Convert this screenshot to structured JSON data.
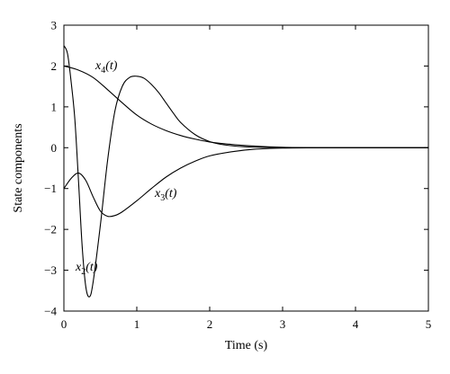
{
  "chart_data": {
    "type": "line",
    "xlabel": "Time (s)",
    "ylabel": "State components",
    "xlim": [
      0,
      5
    ],
    "ylim": [
      -4,
      3
    ],
    "xticks": [
      "0",
      "1",
      "2",
      "3",
      "4",
      "5"
    ],
    "yticks": [
      "3",
      "2",
      "1",
      "0",
      "−1",
      "−2",
      "−3",
      "−4"
    ],
    "grid": false,
    "series": [
      {
        "name": "x2(t)",
        "label_main": "x",
        "label_sub": "2",
        "label_arg": "(t)",
        "x": [
          0,
          0.05,
          0.1,
          0.15,
          0.2,
          0.25,
          0.3,
          0.35,
          0.4,
          0.5,
          0.6,
          0.7,
          0.8,
          0.9,
          1.0,
          1.1,
          1.2,
          1.3,
          1.4,
          1.5,
          1.6,
          1.8,
          2.0,
          2.2,
          2.5,
          3.0,
          3.5,
          4.0,
          4.5,
          5.0
        ],
        "values": [
          2.5,
          2.3,
          1.6,
          0.7,
          -0.8,
          -2.4,
          -3.4,
          -3.65,
          -3.3,
          -1.9,
          -0.3,
          0.9,
          1.5,
          1.72,
          1.75,
          1.7,
          1.55,
          1.35,
          1.1,
          0.85,
          0.62,
          0.32,
          0.15,
          0.07,
          0.02,
          0.0,
          0.0,
          0.0,
          0.0,
          0.0
        ]
      },
      {
        "name": "x3(t)",
        "label_main": "x",
        "label_sub": "3",
        "label_arg": "(t)",
        "x": [
          0,
          0.1,
          0.2,
          0.3,
          0.4,
          0.5,
          0.6,
          0.7,
          0.8,
          1.0,
          1.2,
          1.4,
          1.6,
          1.8,
          2.0,
          2.3,
          2.6,
          3.0,
          3.5,
          4.0,
          4.5,
          5.0
        ],
        "values": [
          -1.0,
          -0.75,
          -0.62,
          -0.8,
          -1.2,
          -1.55,
          -1.68,
          -1.66,
          -1.57,
          -1.3,
          -1.0,
          -0.72,
          -0.5,
          -0.33,
          -0.2,
          -0.1,
          -0.04,
          -0.01,
          0.0,
          0.0,
          0.0,
          0.0
        ]
      },
      {
        "name": "x4(t)",
        "label_main": "x",
        "label_sub": "4",
        "label_arg": "(t)",
        "x": [
          0,
          0.2,
          0.4,
          0.6,
          0.8,
          1.0,
          1.2,
          1.4,
          1.6,
          1.8,
          2.0,
          2.3,
          2.6,
          3.0,
          3.5,
          4.0,
          4.5,
          5.0
        ],
        "values": [
          2.0,
          1.9,
          1.72,
          1.42,
          1.1,
          0.8,
          0.58,
          0.42,
          0.3,
          0.21,
          0.14,
          0.08,
          0.04,
          0.01,
          0.0,
          0.0,
          0.0,
          0.0
        ]
      }
    ]
  }
}
